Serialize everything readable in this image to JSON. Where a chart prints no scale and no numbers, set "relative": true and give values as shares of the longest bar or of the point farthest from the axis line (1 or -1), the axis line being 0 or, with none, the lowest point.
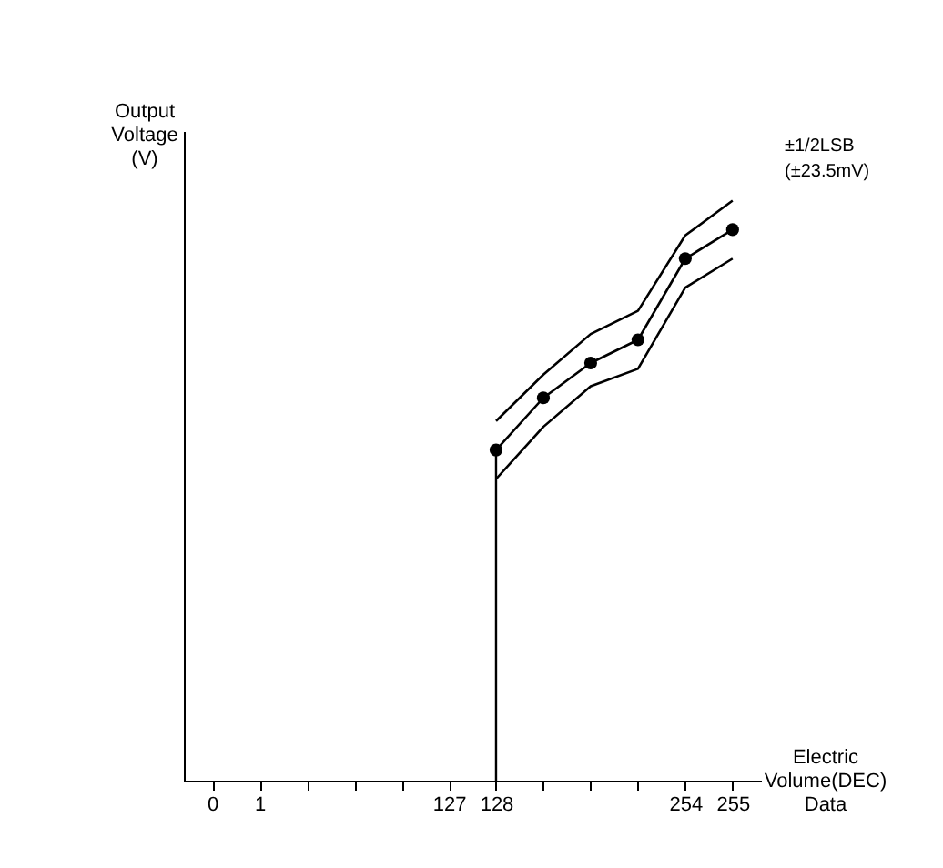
{
  "chart_data": {
    "type": "line",
    "relative": true,
    "xlabel": "Electric Volume(DEC) Data",
    "ylabel": "Output Voltage (V)",
    "categories": [
      "0",
      "1",
      null,
      null,
      null,
      "127",
      "128",
      null,
      null,
      null,
      "254",
      "255"
    ],
    "series": [
      {
        "color": "#000000",
        "marker": "circle",
        "values": [
          null,
          null,
          null,
          null,
          null,
          null,
          0.57,
          0.66,
          0.72,
          0.76,
          0.9,
          0.95
        ]
      },
      {
        "color": "#000000",
        "marker": "none",
        "values": [
          null,
          null,
          null,
          null,
          null,
          null,
          0.52,
          0.61,
          0.68,
          0.71,
          0.85,
          0.9
        ]
      },
      {
        "color": "#000000",
        "marker": "none",
        "values": [
          null,
          null,
          null,
          null,
          null,
          null,
          0.62,
          0.7,
          0.77,
          0.81,
          0.94,
          1.0
        ]
      }
    ],
    "ref_lines": [
      {
        "axis": "x",
        "value": "128"
      }
    ],
    "annotations": [
      "±1/2LSB",
      "(±23.5mV)"
    ],
    "grid": false
  }
}
